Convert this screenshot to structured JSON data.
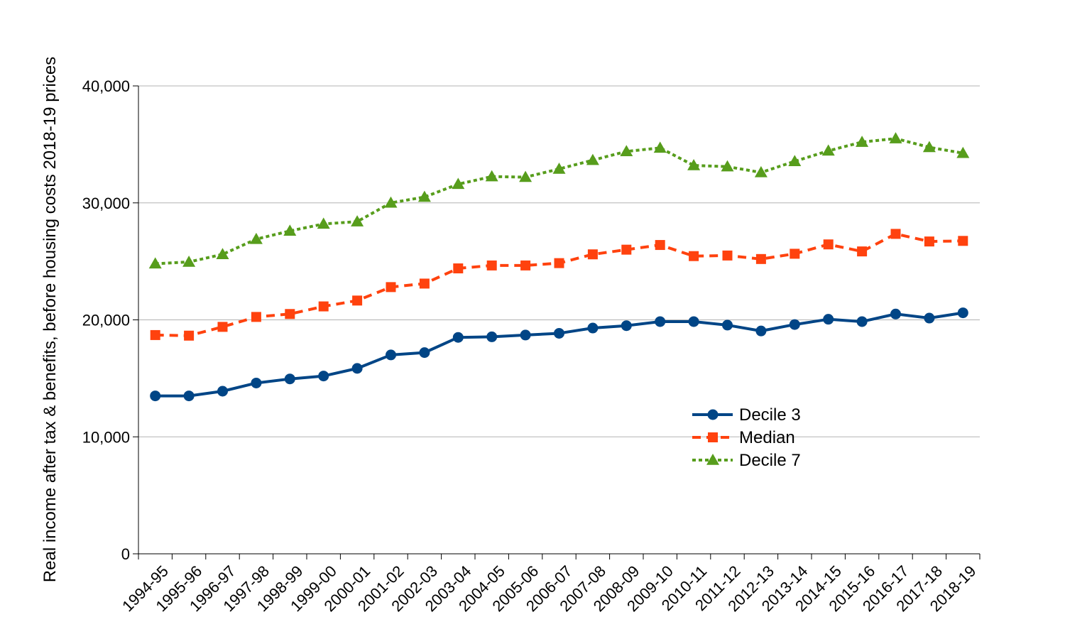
{
  "chart_data": {
    "type": "line",
    "title": "",
    "xlabel": "",
    "ylabel": "Real income after tax & benefits, before housing costs 2018-19 prices",
    "ylim": [
      0,
      40000
    ],
    "yticks": [
      0,
      10000,
      20000,
      30000,
      40000
    ],
    "ytick_labels": [
      "0",
      "10,000",
      "20,000",
      "30,000",
      "40,000"
    ],
    "grid": true,
    "legend_position": "right-center",
    "categories": [
      "1994-95",
      "1995-96",
      "1996-97",
      "1997-98",
      "1998-99",
      "1999-00",
      "2000-01",
      "2001-02",
      "2002-03",
      "2003-04",
      "2004-05",
      "2005-06",
      "2006-07",
      "2007-08",
      "2008-09",
      "2009-10",
      "2010-11",
      "2011-12",
      "2012-13",
      "2013-14",
      "2014-15",
      "2015-16",
      "2016-17",
      "2017-18",
      "2018-19"
    ],
    "series": [
      {
        "name": "Decile 3",
        "color": "#004586",
        "marker": "circle",
        "line_style": "solid",
        "values": [
          13500,
          13500,
          13900,
          14600,
          14950,
          15200,
          15850,
          17000,
          17200,
          18500,
          18550,
          18700,
          18850,
          19300,
          19500,
          19850,
          19850,
          19550,
          19050,
          19600,
          20050,
          19850,
          20500,
          20150,
          20600
        ]
      },
      {
        "name": "Median",
        "color": "#ff420e",
        "marker": "square",
        "line_style": "dashed",
        "values": [
          18700,
          18650,
          19400,
          20250,
          20500,
          21150,
          21650,
          22800,
          23100,
          24400,
          24650,
          24650,
          24850,
          25600,
          26000,
          26400,
          25450,
          25500,
          25200,
          25650,
          26450,
          25850,
          27350,
          26700,
          26750
        ]
      },
      {
        "name": "Decile 7",
        "color": "#579d1c",
        "marker": "triangle",
        "line_style": "dotted",
        "values": [
          24800,
          24950,
          25600,
          26900,
          27600,
          28200,
          28400,
          30000,
          30500,
          31600,
          32250,
          32200,
          32900,
          33650,
          34400,
          34700,
          33200,
          33100,
          32600,
          33550,
          34450,
          35200,
          35500,
          34750,
          34250
        ]
      }
    ]
  }
}
